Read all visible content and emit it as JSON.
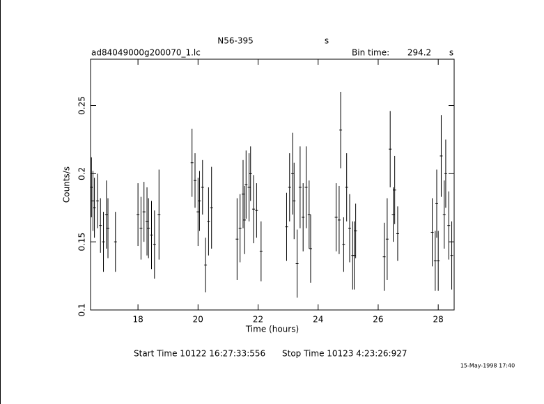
{
  "chart_data": {
    "type": "scatter",
    "title": "N56-395",
    "title_unit": "s",
    "subtitle": "ad84049000g200070_1.lc",
    "bin_time_label": "Bin time:",
    "bin_time": 294.2,
    "bin_time_unit": "s",
    "x_label": "Time (hours)",
    "y_label": "Counts/s",
    "start_time": "Start Time 10122 16:27:33:556",
    "stop_time": "Stop Time 10123  4:23:26:927",
    "timestamp": "15-May-1998 17:40",
    "xlim": [
      16.42,
      28.53
    ],
    "ylim": [
      0.1,
      0.284
    ],
    "xticks": [
      18,
      20,
      22,
      24,
      26,
      28
    ],
    "yticks": [
      0.1,
      0.15,
      0.2,
      0.25
    ],
    "color": "#000000",
    "series": [
      {
        "x": [
          16.45,
          16.5,
          16.55,
          16.65,
          16.75,
          16.85,
          16.95,
          17.0,
          17.25,
          18.0,
          18.1,
          18.2,
          18.3,
          18.35,
          18.45,
          18.55,
          18.7,
          19.8,
          19.9,
          20.0,
          20.05,
          20.15,
          20.25,
          20.35,
          20.45,
          21.3,
          21.4,
          21.5,
          21.55,
          21.6,
          21.7,
          21.75,
          21.85,
          21.95,
          22.1,
          22.95,
          23.05,
          23.15,
          23.2,
          23.3,
          23.4,
          23.5,
          23.6,
          23.7,
          23.75,
          24.6,
          24.7,
          24.75,
          24.85,
          24.95,
          25.05,
          25.15,
          25.2,
          25.25,
          26.2,
          26.3,
          26.4,
          26.5,
          26.55,
          26.65,
          27.8,
          27.9,
          27.95,
          28.0,
          28.1,
          28.2,
          28.25,
          28.35,
          28.45
        ],
        "values": [
          0.19,
          0.18,
          0.175,
          0.18,
          0.162,
          0.15,
          0.17,
          0.16,
          0.15,
          0.17,
          0.16,
          0.172,
          0.165,
          0.16,
          0.155,
          0.148,
          0.17,
          0.208,
          0.195,
          0.172,
          0.18,
          0.19,
          0.133,
          0.165,
          0.175,
          0.152,
          0.16,
          0.185,
          0.166,
          0.192,
          0.19,
          0.2,
          0.174,
          0.173,
          0.143,
          0.161,
          0.19,
          0.2,
          0.18,
          0.134,
          0.19,
          0.168,
          0.19,
          0.17,
          0.145,
          0.168,
          0.166,
          0.232,
          0.148,
          0.19,
          0.16,
          0.14,
          0.14,
          0.158,
          0.139,
          0.152,
          0.218,
          0.17,
          0.188,
          0.156,
          0.157,
          0.136,
          0.178,
          0.136,
          0.213,
          0.17,
          0.2,
          0.162,
          0.14
        ],
        "errors": [
          0.022,
          0.022,
          0.022,
          0.02,
          0.02,
          0.022,
          0.025,
          0.022,
          0.022,
          0.023,
          0.023,
          0.022,
          0.025,
          0.022,
          0.025,
          0.025,
          0.033,
          0.025,
          0.02,
          0.025,
          0.022,
          0.02,
          0.02,
          0.025,
          0.03,
          0.03,
          0.025,
          0.025,
          0.025,
          0.025,
          0.025,
          0.02,
          0.025,
          0.02,
          0.022,
          0.025,
          0.025,
          0.03,
          0.028,
          0.025,
          0.03,
          0.025,
          0.03,
          0.025,
          0.025,
          0.025,
          0.025,
          0.028,
          0.02,
          0.025,
          0.025,
          0.025,
          0.025,
          0.02,
          0.025,
          0.03,
          0.028,
          0.02,
          0.025,
          0.02,
          0.025,
          0.022,
          0.025,
          0.022,
          0.03,
          0.025,
          0.025,
          0.025,
          0.025
        ]
      }
    ]
  }
}
